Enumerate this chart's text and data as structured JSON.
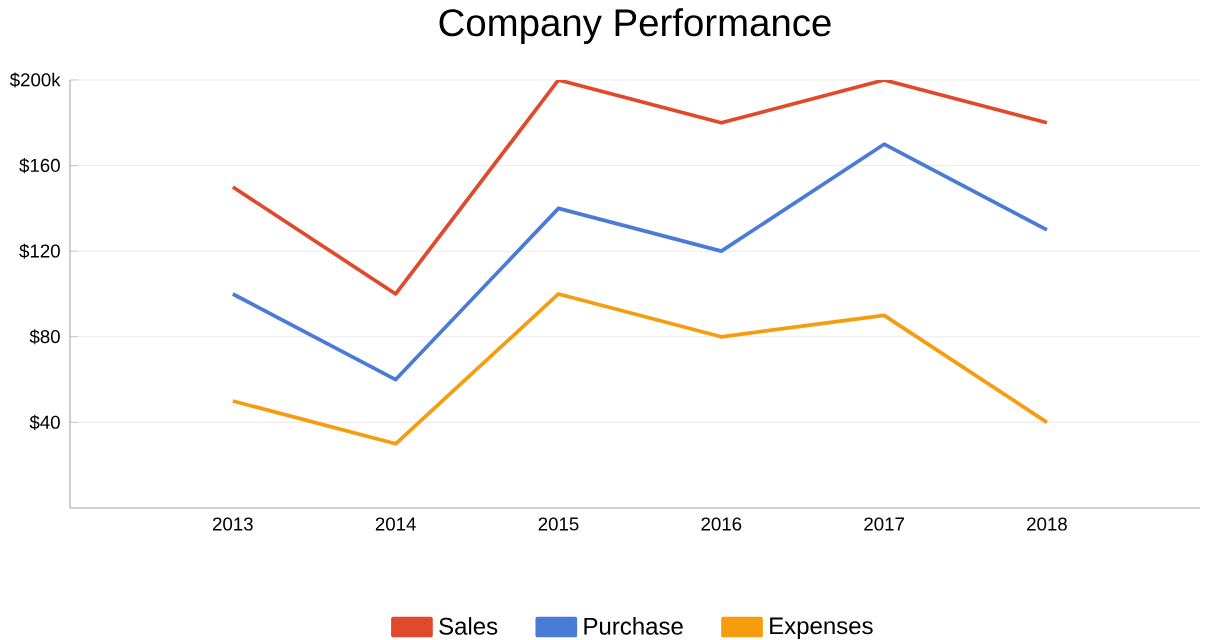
{
  "chart_data": {
    "type": "line",
    "title": "Company Performance",
    "categories": [
      "2013",
      "2014",
      "2015",
      "2016",
      "2017",
      "2018"
    ],
    "series": [
      {
        "name": "Sales",
        "color": "#e0492b",
        "values": [
          150,
          100,
          200,
          180,
          200,
          180
        ]
      },
      {
        "name": "Purchase",
        "color": "#4a7bd6",
        "values": [
          100,
          60,
          140,
          120,
          170,
          130
        ]
      },
      {
        "name": "Expenses",
        "color": "#f59c0f",
        "values": [
          50,
          30,
          100,
          80,
          90,
          40
        ]
      }
    ],
    "ylim": [
      0,
      200
    ],
    "yticks": [
      {
        "value": 40,
        "label": "$40"
      },
      {
        "value": 80,
        "label": "$80"
      },
      {
        "value": 120,
        "label": "$120"
      },
      {
        "value": 160,
        "label": "$160"
      },
      {
        "value": 200,
        "label": "$200k"
      }
    ],
    "grid": "y",
    "legend": "bottom",
    "marker": "none",
    "line_style": "solid"
  }
}
